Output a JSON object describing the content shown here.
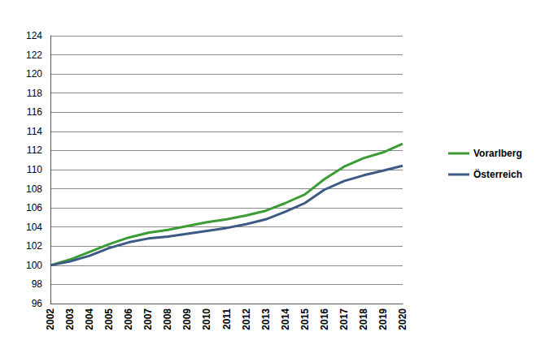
{
  "chart_data": {
    "type": "line",
    "categories": [
      "2002",
      "2003",
      "2004",
      "2005",
      "2006",
      "2007",
      "2008",
      "2009",
      "2010",
      "2011",
      "2012",
      "2013",
      "2014",
      "2015",
      "2016",
      "2017",
      "2018",
      "2019",
      "2020"
    ],
    "series": [
      {
        "name": "Vorarlberg",
        "color": "#3c9b34",
        "values": [
          100,
          100.6,
          101.4,
          102.2,
          102.9,
          103.4,
          103.7,
          104.1,
          104.5,
          104.8,
          105.2,
          105.7,
          106.5,
          107.4,
          109.0,
          110.3,
          111.2,
          111.8,
          112.7
        ]
      },
      {
        "name": "Österreich",
        "color": "#3b5a86",
        "values": [
          100,
          100.4,
          101.0,
          101.8,
          102.4,
          102.8,
          103.0,
          103.3,
          103.6,
          103.9,
          104.3,
          104.8,
          105.6,
          106.5,
          107.9,
          108.8,
          109.4,
          109.9,
          110.4
        ]
      }
    ],
    "ylim": [
      96,
      124
    ],
    "yticks": [
      96,
      98,
      100,
      102,
      104,
      106,
      108,
      110,
      112,
      114,
      116,
      118,
      120,
      122,
      124
    ],
    "grid": true,
    "legend": "right"
  }
}
